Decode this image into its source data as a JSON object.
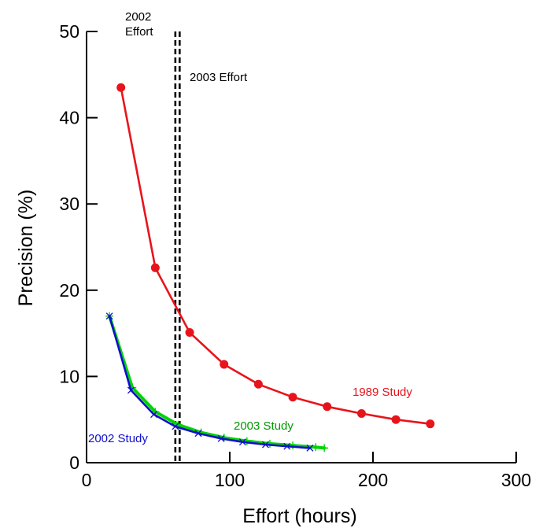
{
  "chart_data": {
    "type": "line",
    "title": "",
    "xlabel": "Effort (hours)",
    "ylabel": "Precision (%)",
    "xlim": [
      0,
      300
    ],
    "ylim": [
      0,
      50
    ],
    "xticks": [
      0,
      100,
      200,
      300
    ],
    "yticks": [
      0,
      10,
      20,
      30,
      40,
      50
    ],
    "grid": false,
    "series": [
      {
        "name": "1989 Study",
        "color": "#e8141b",
        "marker": "circle",
        "x": [
          24,
          48,
          72,
          96,
          120,
          144,
          168,
          192,
          216,
          240
        ],
        "y": [
          43.5,
          22.6,
          15.1,
          11.4,
          9.1,
          7.6,
          6.5,
          5.7,
          5.0,
          4.5
        ]
      },
      {
        "name": "2003 Study",
        "color": "#00d400",
        "label_color": "#009900",
        "marker": "plus",
        "x": [
          16,
          32,
          48,
          64,
          80,
          96,
          112,
          128,
          144,
          160,
          166
        ],
        "y": [
          17.0,
          8.7,
          5.9,
          4.4,
          3.5,
          2.9,
          2.5,
          2.2,
          2.0,
          1.8,
          1.7
        ]
      },
      {
        "name": "2002 Study",
        "color": "#1010cc",
        "marker": "x",
        "x": [
          16,
          31,
          47,
          62,
          78,
          94,
          109,
          125,
          140,
          156
        ],
        "y": [
          17.0,
          8.4,
          5.6,
          4.2,
          3.4,
          2.8,
          2.4,
          2.1,
          1.9,
          1.7
        ]
      }
    ],
    "reference_lines": [
      {
        "label_lines": [
          "2002",
          "Effort"
        ],
        "x": 62
      },
      {
        "label_lines": [
          "2003 Effort"
        ],
        "x": 65
      }
    ]
  }
}
